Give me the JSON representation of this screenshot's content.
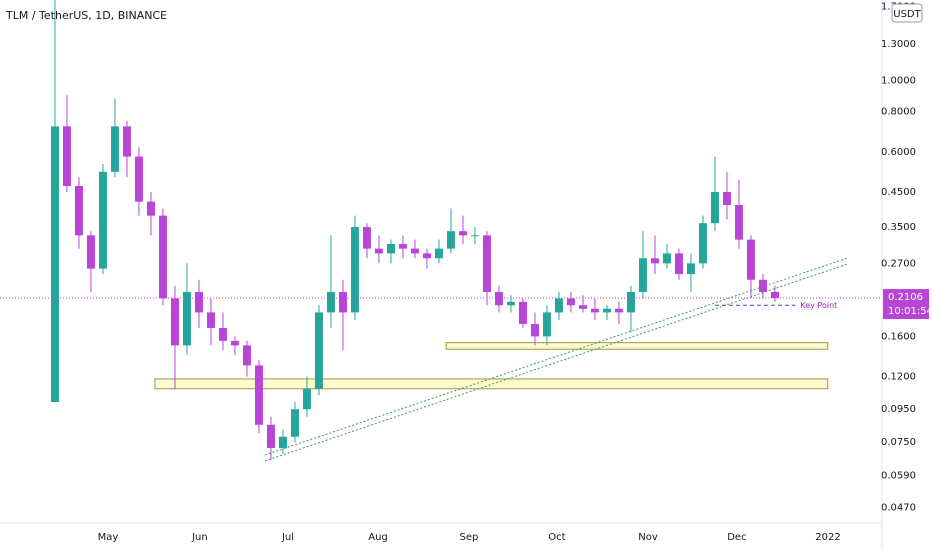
{
  "chart_data": {
    "type": "candlestick",
    "title": "TLM / TetherUS, 1D, BINANCE",
    "currency": "USDT",
    "log_scale": true,
    "up_color": "#26a69a",
    "down_color": "#b845d6",
    "open": [
      0.1,
      0.72,
      0.47,
      0.33,
      0.26,
      0.52,
      0.72,
      0.58,
      0.42,
      0.38,
      0.21,
      0.15,
      0.22,
      0.19,
      0.17,
      0.155,
      0.15,
      0.13,
      0.085,
      0.072,
      0.078,
      0.095,
      0.11,
      0.19,
      0.22,
      0.19,
      0.35,
      0.3,
      0.29,
      0.31,
      0.3,
      0.29,
      0.28,
      0.3,
      0.34,
      0.33,
      0.33,
      0.22,
      0.2,
      0.205,
      0.175,
      0.16,
      0.19,
      0.21,
      0.2,
      0.195,
      0.19,
      0.195,
      0.19,
      0.22,
      0.28,
      0.27,
      0.29,
      0.25,
      0.27,
      0.36,
      0.45,
      0.41,
      0.32,
      0.24,
      0.22
    ],
    "high": [
      1.78,
      0.9,
      0.5,
      0.34,
      0.55,
      0.88,
      0.75,
      0.62,
      0.45,
      0.4,
      0.23,
      0.27,
      0.24,
      0.21,
      0.19,
      0.16,
      0.155,
      0.135,
      0.09,
      0.082,
      0.1,
      0.12,
      0.2,
      0.33,
      0.24,
      0.38,
      0.36,
      0.33,
      0.32,
      0.33,
      0.32,
      0.3,
      0.32,
      0.4,
      0.38,
      0.35,
      0.34,
      0.23,
      0.215,
      0.21,
      0.19,
      0.2,
      0.22,
      0.22,
      0.215,
      0.21,
      0.2,
      0.205,
      0.23,
      0.34,
      0.33,
      0.31,
      0.3,
      0.29,
      0.38,
      0.58,
      0.52,
      0.49,
      0.33,
      0.25,
      0.23
    ],
    "low": [
      0.1,
      0.45,
      0.3,
      0.22,
      0.25,
      0.5,
      0.5,
      0.38,
      0.33,
      0.2,
      0.11,
      0.14,
      0.17,
      0.15,
      0.145,
      0.14,
      0.12,
      0.08,
      0.066,
      0.069,
      0.075,
      0.09,
      0.105,
      0.17,
      0.145,
      0.18,
      0.28,
      0.27,
      0.27,
      0.28,
      0.28,
      0.26,
      0.27,
      0.29,
      0.31,
      0.31,
      0.2,
      0.19,
      0.19,
      0.17,
      0.15,
      0.15,
      0.18,
      0.19,
      0.19,
      0.18,
      0.18,
      0.175,
      0.165,
      0.21,
      0.25,
      0.26,
      0.24,
      0.22,
      0.26,
      0.34,
      0.37,
      0.3,
      0.21,
      0.21,
      0.205
    ],
    "close": [
      0.72,
      0.47,
      0.33,
      0.26,
      0.52,
      0.72,
      0.58,
      0.42,
      0.38,
      0.21,
      0.15,
      0.22,
      0.19,
      0.17,
      0.155,
      0.15,
      0.13,
      0.085,
      0.072,
      0.078,
      0.095,
      0.11,
      0.19,
      0.22,
      0.19,
      0.35,
      0.3,
      0.29,
      0.31,
      0.3,
      0.29,
      0.28,
      0.3,
      0.34,
      0.33,
      0.33,
      0.22,
      0.2,
      0.205,
      0.175,
      0.16,
      0.19,
      0.21,
      0.2,
      0.195,
      0.19,
      0.195,
      0.19,
      0.22,
      0.28,
      0.27,
      0.29,
      0.25,
      0.27,
      0.36,
      0.45,
      0.41,
      0.32,
      0.24,
      0.22,
      0.2106
    ],
    "xlim": [
      -4.58,
      67.92
    ],
    "xticks": [
      {
        "value": 4.42,
        "label": "May"
      },
      {
        "value": 12.08,
        "label": "Jun"
      },
      {
        "value": 19.42,
        "label": "Jul"
      },
      {
        "value": 26.92,
        "label": "Aug"
      },
      {
        "value": 34.5,
        "label": "Sep"
      },
      {
        "value": 41.83,
        "label": "Oct"
      },
      {
        "value": 49.42,
        "label": "Nov"
      },
      {
        "value": 56.83,
        "label": "Dec"
      },
      {
        "value": 64.42,
        "label": "2022"
      }
    ],
    "ylim": [
      0.04,
      1.78
    ],
    "yticks": [
      {
        "value": 1.7,
        "label": "1.7000"
      },
      {
        "value": 1.3,
        "label": "1.3000"
      },
      {
        "value": 1.0,
        "label": "1.0000"
      },
      {
        "value": 0.8,
        "label": "0.8000"
      },
      {
        "value": 0.6,
        "label": "0.6000"
      },
      {
        "value": 0.45,
        "label": "0.4500"
      },
      {
        "value": 0.35,
        "label": "0.3500"
      },
      {
        "value": 0.27,
        "label": "0.2700"
      },
      {
        "value": 0.16,
        "label": "0.1600"
      },
      {
        "value": 0.12,
        "label": "0.1200"
      },
      {
        "value": 0.095,
        "label": "0.0950"
      },
      {
        "value": 0.075,
        "label": "0.0750"
      },
      {
        "value": 0.059,
        "label": "0.0590"
      },
      {
        "value": 0.047,
        "label": "0.0470"
      }
    ],
    "last_price": 0.2106,
    "countdown": "10:01:54",
    "zones": [
      {
        "x": [
          32.6,
          64.4
        ],
        "y": [
          0.146,
          0.153
        ]
      },
      {
        "x": [
          8.33,
          64.4
        ],
        "y": [
          0.11,
          0.118
        ]
      }
    ],
    "trendline": {
      "x": [
        17.5,
        66.1
      ],
      "y": [
        0.067,
        0.275
      ]
    },
    "key_point": {
      "label": "Key Point",
      "value": 0.2,
      "x": [
        55,
        61.7
      ]
    }
  }
}
